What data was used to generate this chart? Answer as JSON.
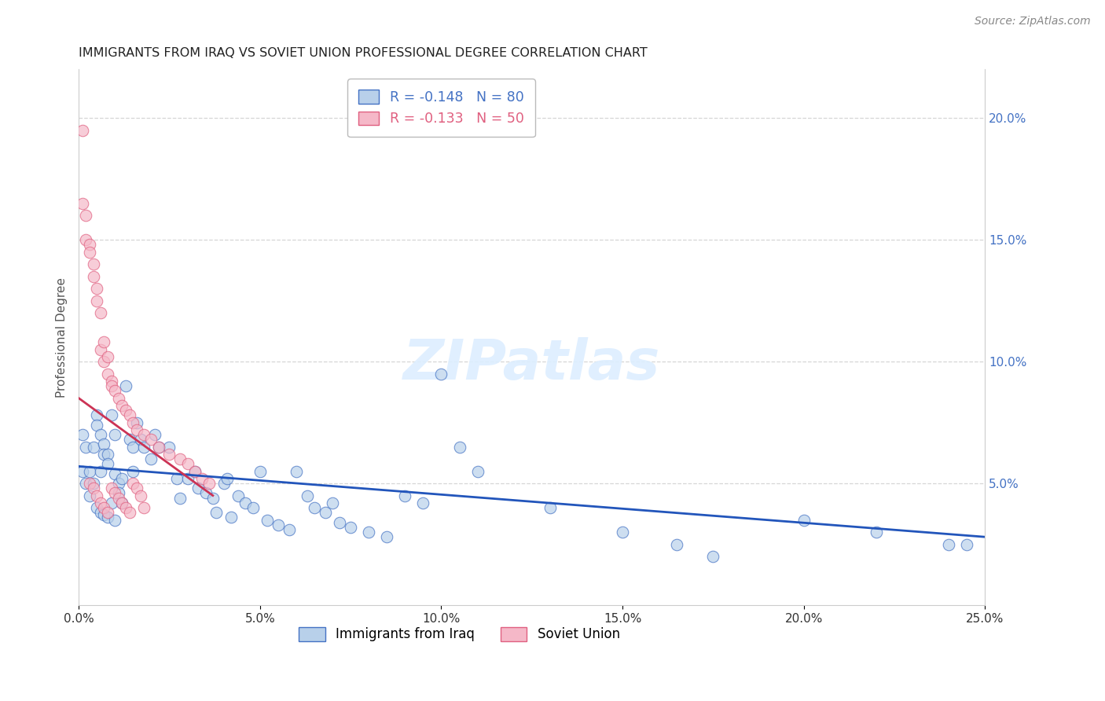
{
  "title": "IMMIGRANTS FROM IRAQ VS SOVIET UNION PROFESSIONAL DEGREE CORRELATION CHART",
  "source": "Source: ZipAtlas.com",
  "ylabel": "Professional Degree",
  "xlim": [
    0.0,
    0.25
  ],
  "ylim": [
    0.0,
    0.22
  ],
  "iraq_R": -0.148,
  "iraq_N": 80,
  "soviet_R": -0.133,
  "soviet_N": 50,
  "iraq_color": "#b8d0ea",
  "soviet_color": "#f5b8c8",
  "iraq_edge_color": "#4472c4",
  "soviet_edge_color": "#e06080",
  "iraq_line_color": "#2255bb",
  "soviet_line_color": "#cc3355",
  "legend_iraq_label": "Immigrants from Iraq",
  "legend_soviet_label": "Soviet Union",
  "background_color": "#ffffff",
  "grid_color": "#cccccc",
  "title_color": "#222222",
  "right_tick_color": "#4472c4",
  "bottom_tick_color": "#333333",
  "source_color": "#888888",
  "iraq_x": [
    0.001,
    0.001,
    0.002,
    0.002,
    0.003,
    0.003,
    0.004,
    0.004,
    0.005,
    0.005,
    0.005,
    0.006,
    0.006,
    0.006,
    0.007,
    0.007,
    0.007,
    0.008,
    0.008,
    0.008,
    0.009,
    0.009,
    0.01,
    0.01,
    0.01,
    0.011,
    0.011,
    0.012,
    0.012,
    0.013,
    0.014,
    0.015,
    0.015,
    0.016,
    0.017,
    0.018,
    0.02,
    0.021,
    0.022,
    0.025,
    0.027,
    0.028,
    0.03,
    0.032,
    0.033,
    0.035,
    0.037,
    0.038,
    0.04,
    0.041,
    0.042,
    0.044,
    0.046,
    0.048,
    0.05,
    0.052,
    0.055,
    0.058,
    0.06,
    0.063,
    0.065,
    0.068,
    0.07,
    0.072,
    0.075,
    0.08,
    0.085,
    0.09,
    0.095,
    0.1,
    0.105,
    0.11,
    0.13,
    0.15,
    0.165,
    0.175,
    0.2,
    0.22,
    0.24,
    0.245
  ],
  "iraq_y": [
    0.07,
    0.055,
    0.065,
    0.05,
    0.055,
    0.045,
    0.065,
    0.05,
    0.078,
    0.074,
    0.04,
    0.07,
    0.055,
    0.038,
    0.066,
    0.062,
    0.037,
    0.062,
    0.058,
    0.036,
    0.078,
    0.042,
    0.07,
    0.054,
    0.035,
    0.05,
    0.046,
    0.052,
    0.042,
    0.09,
    0.068,
    0.065,
    0.055,
    0.075,
    0.068,
    0.065,
    0.06,
    0.07,
    0.065,
    0.065,
    0.052,
    0.044,
    0.052,
    0.055,
    0.048,
    0.046,
    0.044,
    0.038,
    0.05,
    0.052,
    0.036,
    0.045,
    0.042,
    0.04,
    0.055,
    0.035,
    0.033,
    0.031,
    0.055,
    0.045,
    0.04,
    0.038,
    0.042,
    0.034,
    0.032,
    0.03,
    0.028,
    0.045,
    0.042,
    0.095,
    0.065,
    0.055,
    0.04,
    0.03,
    0.025,
    0.02,
    0.035,
    0.03,
    0.025,
    0.025
  ],
  "soviet_x": [
    0.001,
    0.001,
    0.002,
    0.002,
    0.003,
    0.003,
    0.004,
    0.004,
    0.005,
    0.005,
    0.006,
    0.006,
    0.007,
    0.007,
    0.008,
    0.008,
    0.009,
    0.009,
    0.01,
    0.011,
    0.012,
    0.013,
    0.014,
    0.015,
    0.016,
    0.018,
    0.02,
    0.022,
    0.025,
    0.028,
    0.03,
    0.032,
    0.034,
    0.036,
    0.003,
    0.004,
    0.005,
    0.006,
    0.007,
    0.008,
    0.009,
    0.01,
    0.011,
    0.012,
    0.013,
    0.014,
    0.015,
    0.016,
    0.017,
    0.018
  ],
  "soviet_y": [
    0.195,
    0.165,
    0.16,
    0.15,
    0.148,
    0.145,
    0.14,
    0.135,
    0.13,
    0.125,
    0.12,
    0.105,
    0.108,
    0.1,
    0.102,
    0.095,
    0.092,
    0.09,
    0.088,
    0.085,
    0.082,
    0.08,
    0.078,
    0.075,
    0.072,
    0.07,
    0.068,
    0.065,
    0.062,
    0.06,
    0.058,
    0.055,
    0.052,
    0.05,
    0.05,
    0.048,
    0.045,
    0.042,
    0.04,
    0.038,
    0.048,
    0.046,
    0.044,
    0.042,
    0.04,
    0.038,
    0.05,
    0.048,
    0.045,
    0.04
  ],
  "iraq_line_start_x": 0.0,
  "iraq_line_end_x": 0.25,
  "iraq_line_start_y": 0.057,
  "iraq_line_end_y": 0.028,
  "soviet_line_start_x": 0.0,
  "soviet_line_end_x": 0.037,
  "soviet_line_start_y": 0.085,
  "soviet_line_end_y": 0.045
}
